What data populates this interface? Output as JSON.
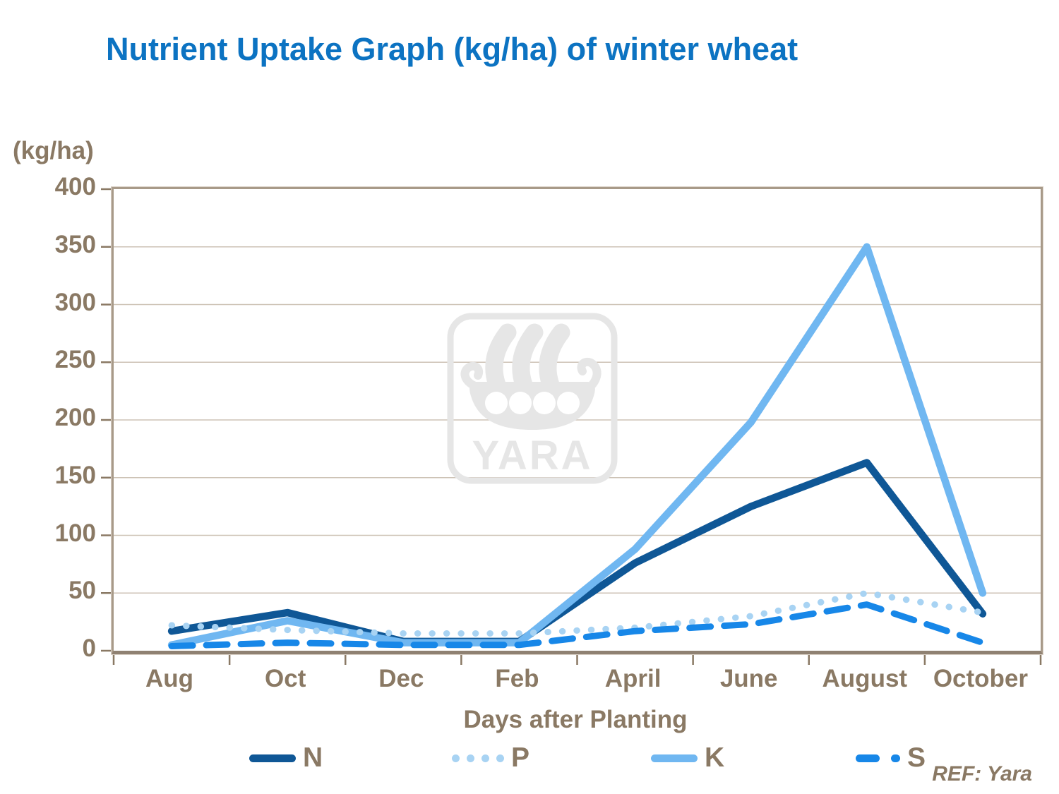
{
  "page": {
    "title": "Nutrient Uptake Graph (kg/ha) of winter wheat",
    "ref_note": "REF: Yara"
  },
  "watermark": {
    "text": "YARA"
  },
  "chart_data": {
    "type": "line",
    "title": "Nutrient Uptake Graph (kg/ha) of winter wheat",
    "y_axis_label": "(kg/ha)",
    "x_axis_label": "Days after Planting",
    "categories": [
      "Aug",
      "Oct",
      "Dec",
      "Feb",
      "April",
      "June",
      "August",
      "October"
    ],
    "y_ticks": [
      400,
      350,
      300,
      250,
      200,
      150,
      100,
      50,
      0
    ],
    "ylim": [
      0,
      400
    ],
    "grid": "horizontal",
    "legend_position": "bottom",
    "series": [
      {
        "name": "N",
        "style": "solid",
        "color": "#0f5796",
        "values": [
          17,
          33,
          8,
          8,
          76,
          125,
          163,
          32
        ]
      },
      {
        "name": "P",
        "style": "dotted",
        "color": "#a8d3f3",
        "values": [
          22,
          18,
          15,
          15,
          20,
          30,
          50,
          33
        ]
      },
      {
        "name": "K",
        "style": "solid",
        "color": "#70b7f1",
        "values": [
          5,
          26,
          7,
          7,
          88,
          198,
          350,
          50
        ]
      },
      {
        "name": "S",
        "style": "dashed",
        "color": "#1787e8",
        "values": [
          4,
          7,
          5,
          5,
          17,
          23,
          40,
          7
        ]
      }
    ]
  },
  "colors": {
    "title": "#0c73c2",
    "axis_text": "#8a7964",
    "grid": "#cdc2b5",
    "frame": "#a89a89",
    "tick": "#8a7964",
    "watermark": "#e6e6e6"
  }
}
